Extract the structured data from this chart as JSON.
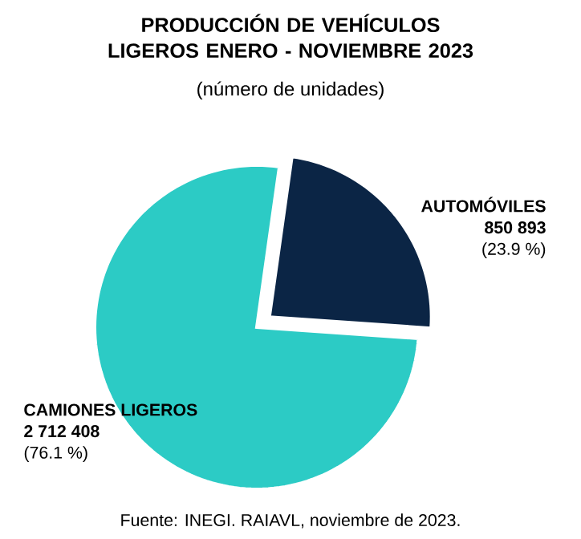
{
  "chart_data": {
    "type": "pie",
    "title": "PRODUCCIÓN DE VEHÍCULOS LIGEROS ENERO - NOVIEMBRE 2023",
    "subtitle": "(número de unidades)",
    "categories": [
      "AUTOMÓVILES",
      "CAMIONES LIGEROS"
    ],
    "values": [
      850893,
      2712408
    ],
    "value_labels": [
      "850 893",
      "2 712  408"
    ],
    "colors": [
      "#0b2545",
      "#2ccbc5"
    ],
    "annotations": [
      "(23.9 %)",
      "(76.1 %)",
      "Fuente: INEGI. RAIAVL, noviembre de 2023."
    ]
  }
}
